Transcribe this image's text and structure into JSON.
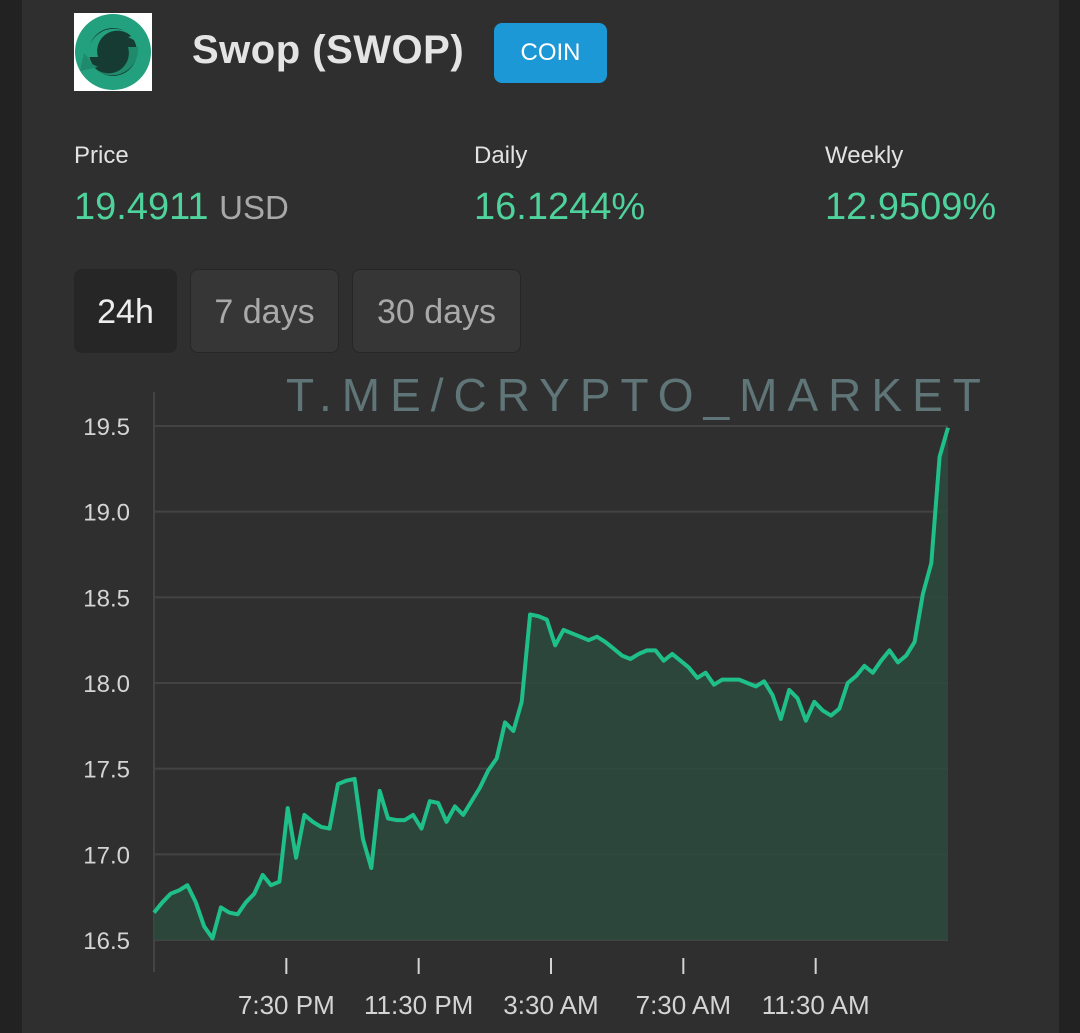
{
  "coin": {
    "name": "Swop (SWOP)",
    "badge": "COIN",
    "logo_icon": "swop-logo-icon"
  },
  "stats": {
    "price_label": "Price",
    "price_value": "19.4911",
    "price_unit": "USD",
    "daily_label": "Daily",
    "daily_value": "16.1244%",
    "weekly_label": "Weekly",
    "weekly_value": "12.9509%"
  },
  "tabs": [
    {
      "label": "24h",
      "active": true
    },
    {
      "label": "7 days",
      "active": false
    },
    {
      "label": "30 days",
      "active": false
    }
  ],
  "watermark": "T.ME/CRYPTO_MARKET",
  "colors": {
    "accent": "#4fd39c",
    "line": "#1fbf8a",
    "fill": "#2b4a3e",
    "badge": "#1c98d6",
    "background": "#2f2f2f"
  },
  "chart_data": {
    "type": "area",
    "ylim": [
      16.5,
      19.5
    ],
    "yticks": [
      "19.5",
      "19.0",
      "18.5",
      "18.0",
      "17.5",
      "17.0",
      "16.5"
    ],
    "xticks": [
      "7:30 PM",
      "11:30 PM",
      "3:30 AM",
      "7:30 AM",
      "11:30 AM"
    ],
    "xtick_positions_hours": [
      4,
      8,
      12,
      16,
      20
    ],
    "x_range_hours": [
      0,
      24
    ],
    "series": [
      {
        "values": [
          16.66,
          16.72,
          16.77,
          16.79,
          16.82,
          16.72,
          16.58,
          16.51,
          16.69,
          16.66,
          16.65,
          16.72,
          16.77,
          16.88,
          16.82,
          16.84,
          17.27,
          16.98,
          17.23,
          17.19,
          17.16,
          17.15,
          17.41,
          17.43,
          17.44,
          17.09,
          16.92,
          17.37,
          17.21,
          17.2,
          17.2,
          17.23,
          17.15,
          17.31,
          17.3,
          17.19,
          17.28,
          17.23,
          17.31,
          17.39,
          17.49,
          17.56,
          17.77,
          17.72,
          17.89,
          18.4,
          18.39,
          18.37,
          18.22,
          18.31,
          18.29,
          18.27,
          18.25,
          18.27,
          18.24,
          18.2,
          18.16,
          18.14,
          18.17,
          18.19,
          18.19,
          18.13,
          18.17,
          18.13,
          18.09,
          18.03,
          18.06,
          17.99,
          18.02,
          18.02,
          18.02,
          18.0,
          17.98,
          18.01,
          17.93,
          17.79,
          17.96,
          17.91,
          17.78,
          17.89,
          17.84,
          17.81,
          17.85,
          18.0,
          18.04,
          18.1,
          18.06,
          18.13,
          18.19,
          18.12,
          18.16,
          18.24,
          18.52,
          18.7,
          19.32,
          19.49
        ]
      }
    ]
  }
}
